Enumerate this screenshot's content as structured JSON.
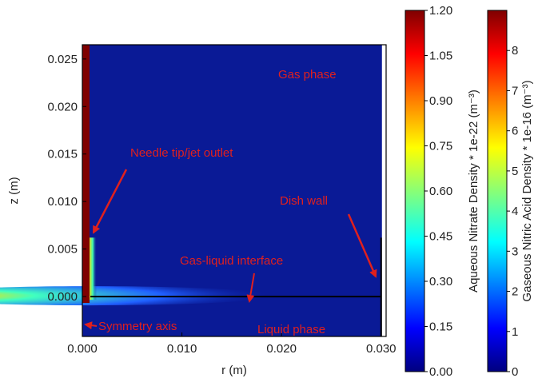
{
  "chart_data": {
    "type": "heatmap",
    "title": "",
    "xlabel": "r (m)",
    "ylabel": "z (m)",
    "xlim": [
      0.0,
      0.0305
    ],
    "ylim": [
      -0.0042,
      0.0265
    ],
    "xticks": [
      "0.000",
      "0.010",
      "0.020",
      "0.030"
    ],
    "yticks": [
      "0.000",
      "0.005",
      "0.010",
      "0.015",
      "0.020",
      "0.025"
    ],
    "colorbars": [
      {
        "label": "Aqueous Nitrate Density * 1e-22 (m⁻³)",
        "min": 0.0,
        "max": 1.2,
        "ticks": [
          "0.00",
          "0.15",
          "0.30",
          "0.45",
          "0.60",
          "0.75",
          "0.90",
          "1.05",
          "1.20"
        ]
      },
      {
        "label": "Gaseous Nitric Acid Density * 1e-16 (m⁻³)",
        "min": 0,
        "max": 9,
        "ticks": [
          "0",
          "1",
          "2",
          "3",
          "4",
          "5",
          "6",
          "7",
          "8"
        ]
      }
    ],
    "regions": {
      "interface_z": 0.0,
      "dish_wall_r": 0.03,
      "dish_wall_top_z": 0.0062,
      "needle_top_z": 0.0062
    },
    "annotations": [
      {
        "text": "Gas phase"
      },
      {
        "text": "Needle tip/jet outlet"
      },
      {
        "text": "Dish wall"
      },
      {
        "text": "Gas-liquid interface"
      },
      {
        "text": "Symmetry axis"
      },
      {
        "text": "Liquid phase"
      }
    ]
  },
  "colors": {
    "background_field": "#0a1a96",
    "annotation": "#e0201e",
    "needle": "#7f0000"
  }
}
